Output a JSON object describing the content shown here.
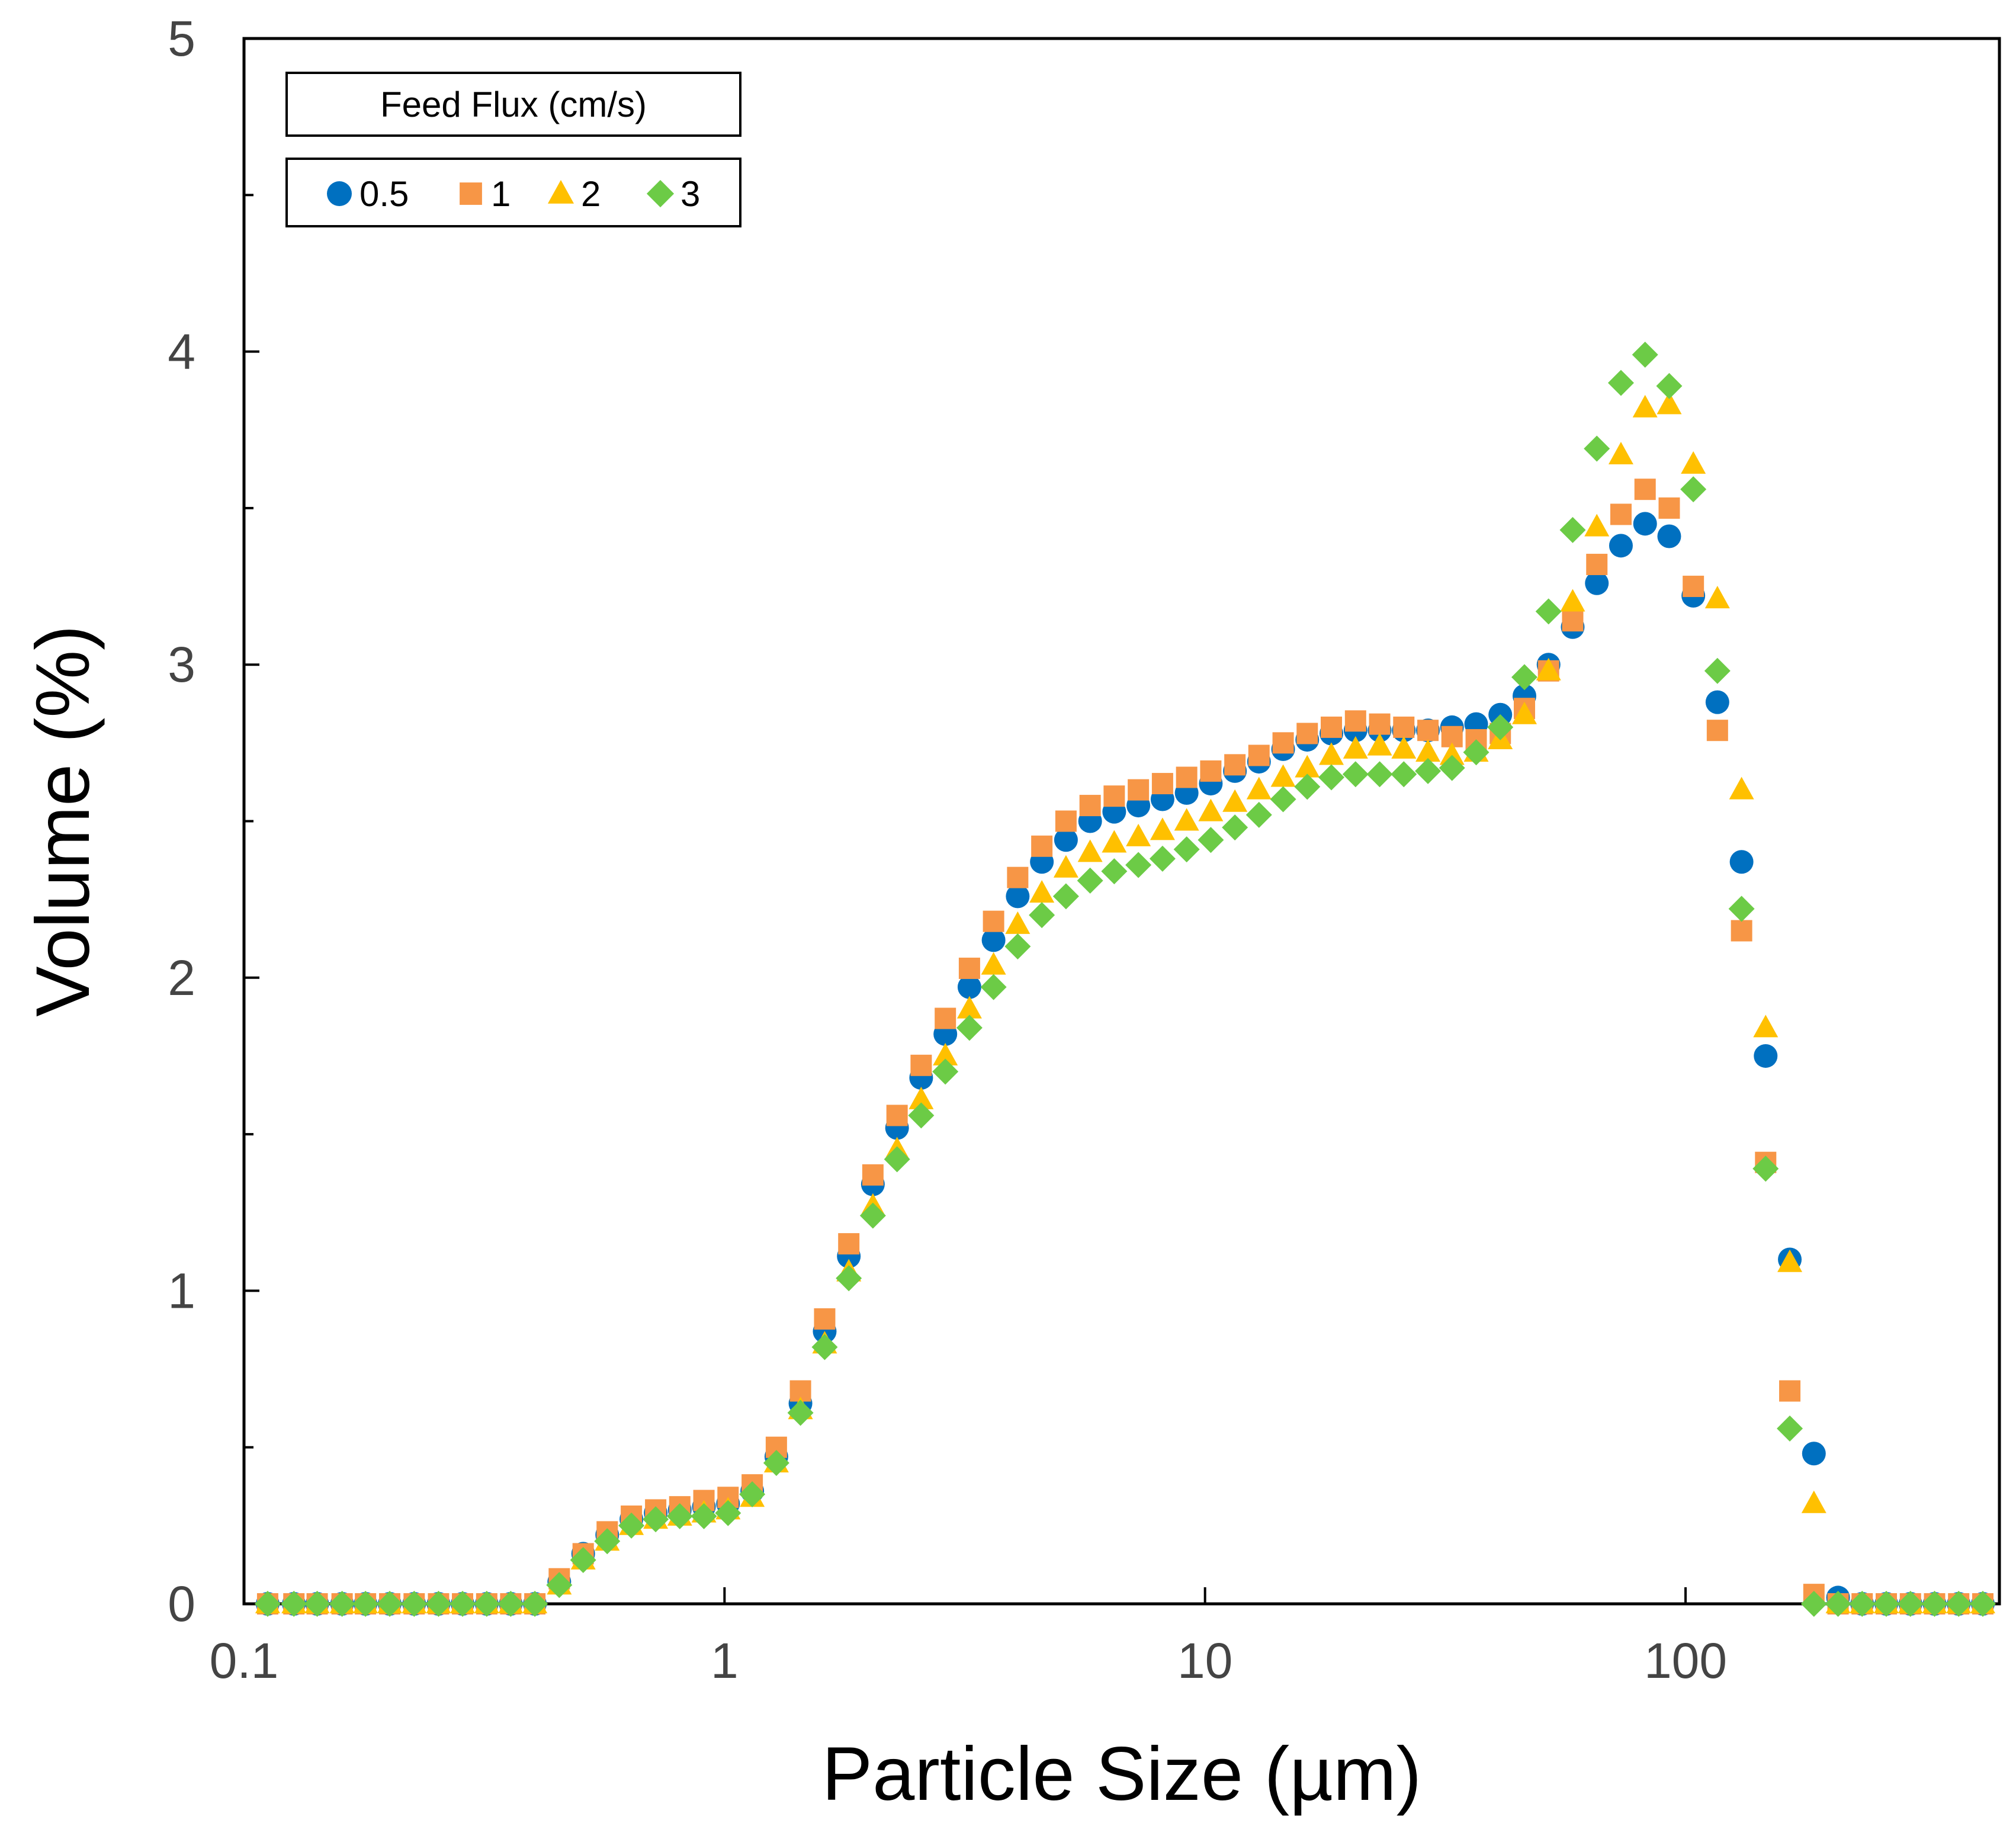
{
  "chart_data": {
    "type": "scatter",
    "xscale": "log",
    "xlabel": "Particle Size (µm)",
    "ylabel": "Volume (%)",
    "xlim": [
      0.1,
      450
    ],
    "ylim": [
      0,
      5
    ],
    "xticks": [
      0.1,
      1,
      10,
      100
    ],
    "xtick_labels": [
      "0.1",
      "1",
      "10",
      "100"
    ],
    "yticks": [
      0,
      1,
      2,
      3,
      4,
      5
    ],
    "ytick_labels": [
      "0",
      "1",
      "2",
      "3",
      "4",
      "5"
    ],
    "grid": false,
    "legend_title": "Feed Flux (cm/s)",
    "legend_position": "top-left",
    "x": [
      0.112,
      0.127,
      0.142,
      0.16,
      0.179,
      0.201,
      0.226,
      0.254,
      0.285,
      0.32,
      0.359,
      0.403,
      0.453,
      0.508,
      0.57,
      0.64,
      0.719,
      0.807,
      0.906,
      1.017,
      1.142,
      1.282,
      1.439,
      1.616,
      1.814,
      2.036,
      2.286,
      2.566,
      2.881,
      3.234,
      3.63,
      4.075,
      4.575,
      5.136,
      5.766,
      6.472,
      7.266,
      8.157,
      9.157,
      10.28,
      11.54,
      12.95,
      14.54,
      16.32,
      18.32,
      20.57,
      23.09,
      25.92,
      29.1,
      32.66,
      36.67,
      41.16,
      46.21,
      51.87,
      58.23,
      65.37,
      73.38,
      82.38,
      92.48,
      103.8,
      116.5,
      130.8,
      146.8,
      164.8,
      185.0,
      207.7,
      233.1,
      261.7,
      293.8,
      329.8,
      370.2,
      415.6
    ],
    "series": [
      {
        "name": "0.5",
        "marker": "circle",
        "color": "#0070C0",
        "values": [
          0,
          0,
          0,
          0,
          0,
          0,
          0,
          0,
          0,
          0,
          0,
          0,
          0.07,
          0.16,
          0.22,
          0.27,
          0.29,
          0.3,
          0.31,
          0.32,
          0.36,
          0.47,
          0.64,
          0.87,
          1.11,
          1.34,
          1.52,
          1.68,
          1.82,
          1.97,
          2.12,
          2.26,
          2.37,
          2.44,
          2.5,
          2.53,
          2.55,
          2.57,
          2.59,
          2.62,
          2.66,
          2.69,
          2.73,
          2.76,
          2.78,
          2.79,
          2.79,
          2.79,
          2.79,
          2.8,
          2.81,
          2.84,
          2.9,
          3.0,
          3.12,
          3.26,
          3.38,
          3.45,
          3.41,
          3.22,
          2.88,
          2.37,
          1.75,
          1.1,
          0.48,
          0.02,
          0,
          0,
          0,
          0,
          0,
          0
        ]
      },
      {
        "name": "1",
        "marker": "square",
        "color": "#F79646",
        "values": [
          0,
          0,
          0,
          0,
          0,
          0,
          0,
          0,
          0,
          0,
          0,
          0,
          0.08,
          0.16,
          0.23,
          0.28,
          0.3,
          0.31,
          0.33,
          0.34,
          0.38,
          0.5,
          0.68,
          0.91,
          1.15,
          1.37,
          1.56,
          1.72,
          1.87,
          2.03,
          2.18,
          2.32,
          2.42,
          2.5,
          2.55,
          2.58,
          2.6,
          2.62,
          2.64,
          2.66,
          2.68,
          2.71,
          2.75,
          2.78,
          2.8,
          2.82,
          2.81,
          2.8,
          2.79,
          2.77,
          2.76,
          2.78,
          2.86,
          2.98,
          3.14,
          3.32,
          3.48,
          3.56,
          3.5,
          3.25,
          2.79,
          2.15,
          1.41,
          0.68,
          0.03,
          0,
          0,
          0,
          0,
          0,
          0,
          0
        ]
      },
      {
        "name": "2",
        "marker": "triangle",
        "color": "#FFC000",
        "values": [
          0,
          0,
          0,
          0,
          0,
          0,
          0,
          0,
          0,
          0,
          0,
          0,
          0.06,
          0.14,
          0.2,
          0.25,
          0.27,
          0.28,
          0.29,
          0.3,
          0.34,
          0.45,
          0.62,
          0.83,
          1.06,
          1.27,
          1.45,
          1.61,
          1.75,
          1.9,
          2.04,
          2.17,
          2.27,
          2.35,
          2.4,
          2.43,
          2.45,
          2.47,
          2.5,
          2.53,
          2.56,
          2.6,
          2.64,
          2.67,
          2.71,
          2.73,
          2.74,
          2.73,
          2.72,
          2.71,
          2.72,
          2.76,
          2.84,
          2.98,
          3.2,
          3.44,
          3.67,
          3.82,
          3.83,
          3.64,
          3.21,
          2.6,
          1.84,
          1.09,
          0.32,
          0,
          0,
          0,
          0,
          0,
          0,
          0
        ]
      },
      {
        "name": "3",
        "marker": "diamond",
        "color": "#6CCB46",
        "values": [
          0,
          0,
          0,
          0,
          0,
          0,
          0,
          0,
          0,
          0,
          0,
          0,
          0.06,
          0.14,
          0.2,
          0.25,
          0.27,
          0.28,
          0.28,
          0.29,
          0.35,
          0.45,
          0.61,
          0.82,
          1.04,
          1.24,
          1.42,
          1.56,
          1.7,
          1.84,
          1.97,
          2.1,
          2.2,
          2.26,
          2.31,
          2.34,
          2.36,
          2.38,
          2.41,
          2.44,
          2.48,
          2.52,
          2.57,
          2.61,
          2.64,
          2.65,
          2.65,
          2.65,
          2.66,
          2.67,
          2.72,
          2.8,
          2.96,
          3.17,
          3.43,
          3.69,
          3.9,
          3.99,
          3.89,
          3.56,
          2.98,
          2.22,
          1.39,
          0.56,
          0,
          0,
          0,
          0,
          0,
          0,
          0,
          0
        ]
      }
    ]
  }
}
